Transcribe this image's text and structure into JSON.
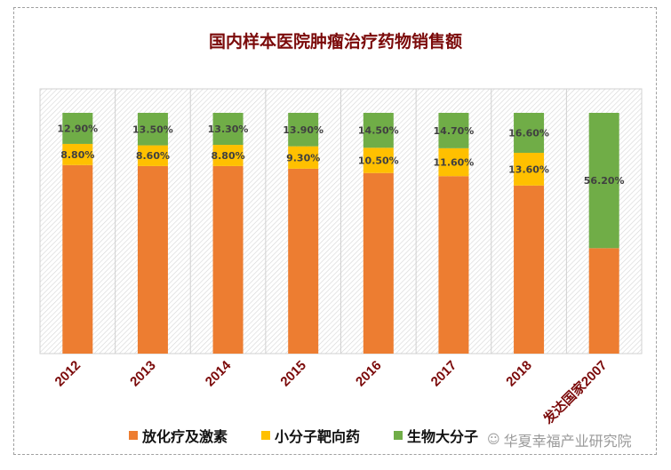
{
  "chart_data": {
    "type": "bar",
    "stacked": "percent",
    "title": "国内样本医院肿瘤治疗药物销售额",
    "categories": [
      "2012",
      "2013",
      "2014",
      "2015",
      "2016",
      "2017",
      "2018",
      "发达国家2007"
    ],
    "series": [
      {
        "name": "放化疗及激素",
        "color": "#ed7d31",
        "values": [
          78.3,
          77.9,
          77.9,
          76.8,
          75.0,
          73.7,
          69.8,
          43.8
        ],
        "labels": [
          "",
          "",
          "",
          "",
          "",
          "",
          "",
          ""
        ]
      },
      {
        "name": "小分子靶向药",
        "color": "#ffc000",
        "values": [
          8.8,
          8.6,
          8.8,
          9.3,
          10.5,
          11.6,
          13.6,
          0
        ],
        "labels": [
          "8.80%",
          "8.60%",
          "8.80%",
          "9.30%",
          "10.50%",
          "11.60%",
          "13.60%",
          ""
        ]
      },
      {
        "name": "生物大分子",
        "color": "#70ad47",
        "values": [
          12.9,
          13.5,
          13.3,
          13.9,
          14.5,
          14.7,
          16.6,
          56.2
        ],
        "labels": [
          "12.90%",
          "13.50%",
          "13.30%",
          "13.90%",
          "14.50%",
          "14.70%",
          "16.60%",
          "56.20%"
        ]
      }
    ],
    "ylim": [
      0,
      100
    ],
    "grid": "vertical",
    "legend": "bottom",
    "xlabel": "",
    "ylabel": ""
  },
  "watermark": "华夏幸福产业研究院"
}
